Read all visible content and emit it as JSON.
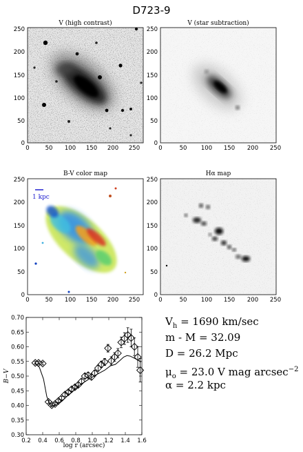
{
  "figure_title": "D723-9",
  "panels": [
    {
      "title": "V (high contrast)",
      "x_ticks": [
        "0",
        "50",
        "100",
        "150",
        "200",
        "250"
      ],
      "y_ticks": [
        "0",
        "50",
        "100",
        "150",
        "200",
        "250"
      ]
    },
    {
      "title": "V (star subtraction)",
      "x_ticks": [
        "0",
        "50",
        "100",
        "150",
        "200",
        "250"
      ],
      "y_ticks": [
        "0",
        "50",
        "100",
        "150",
        "200",
        "250"
      ]
    },
    {
      "title": "B-V color map",
      "scale_label": "1 kpc",
      "x_ticks": [
        "0",
        "50",
        "100",
        "150",
        "200",
        "250"
      ],
      "y_ticks": [
        "0",
        "50",
        "100",
        "150",
        "200",
        "250"
      ]
    },
    {
      "title": "Hα map",
      "x_ticks": [
        "0",
        "50",
        "100",
        "150",
        "200",
        "250"
      ],
      "y_ticks": [
        "0",
        "50",
        "100",
        "150",
        "200",
        "250"
      ]
    }
  ],
  "parameters": {
    "vh_prefix": "V",
    "vh_sub": "h",
    "vh_value": " = 1690 km/sec",
    "distance_modulus": "m - M = 32.09",
    "distance": "D = 26.2 Mpc",
    "mu_prefix": "μ",
    "mu_sub": "o",
    "mu_value": " = 23.0 V mag arcsec",
    "mu_exp": "−2",
    "alpha": "α = 2.2 kpc"
  },
  "chart_data": {
    "type": "scatter",
    "xlabel": "log r (arcsec)",
    "ylabel": "B−V",
    "xlim": [
      0.2,
      1.6
    ],
    "ylim": [
      0.3,
      0.7
    ],
    "x_ticks": [
      "0.2",
      "0.4",
      "0.6",
      "0.8",
      "1.0",
      "1.2",
      "1.4",
      "1.6"
    ],
    "y_ticks": [
      "0.30",
      "0.35",
      "0.40",
      "0.45",
      "0.50",
      "0.55",
      "0.60",
      "0.65",
      "0.70"
    ],
    "points": [
      {
        "x": 0.31,
        "y": 0.545,
        "err": 0.005
      },
      {
        "x": 0.35,
        "y": 0.545,
        "err": 0.005
      },
      {
        "x": 0.4,
        "y": 0.543,
        "err": 0.005
      },
      {
        "x": 0.47,
        "y": 0.412,
        "err": 0.005
      },
      {
        "x": 0.51,
        "y": 0.401,
        "err": 0.005
      },
      {
        "x": 0.55,
        "y": 0.405,
        "err": 0.005
      },
      {
        "x": 0.59,
        "y": 0.415,
        "err": 0.005
      },
      {
        "x": 0.63,
        "y": 0.425,
        "err": 0.006
      },
      {
        "x": 0.67,
        "y": 0.437,
        "err": 0.006
      },
      {
        "x": 0.71,
        "y": 0.445,
        "err": 0.006
      },
      {
        "x": 0.75,
        "y": 0.455,
        "err": 0.007
      },
      {
        "x": 0.79,
        "y": 0.462,
        "err": 0.007
      },
      {
        "x": 0.83,
        "y": 0.47,
        "err": 0.007
      },
      {
        "x": 0.87,
        "y": 0.482,
        "err": 0.008
      },
      {
        "x": 0.91,
        "y": 0.5,
        "err": 0.008
      },
      {
        "x": 0.95,
        "y": 0.503,
        "err": 0.009
      },
      {
        "x": 0.99,
        "y": 0.497,
        "err": 0.009
      },
      {
        "x": 1.03,
        "y": 0.51,
        "err": 0.01
      },
      {
        "x": 1.07,
        "y": 0.527,
        "err": 0.01
      },
      {
        "x": 1.11,
        "y": 0.54,
        "err": 0.011
      },
      {
        "x": 1.15,
        "y": 0.548,
        "err": 0.012
      },
      {
        "x": 1.19,
        "y": 0.595,
        "err": 0.013
      },
      {
        "x": 1.23,
        "y": 0.552,
        "err": 0.014
      },
      {
        "x": 1.27,
        "y": 0.565,
        "err": 0.015
      },
      {
        "x": 1.31,
        "y": 0.578,
        "err": 0.016
      },
      {
        "x": 1.35,
        "y": 0.615,
        "err": 0.018
      },
      {
        "x": 1.39,
        "y": 0.628,
        "err": 0.02
      },
      {
        "x": 1.43,
        "y": 0.64,
        "err": 0.025
      },
      {
        "x": 1.47,
        "y": 0.63,
        "err": 0.03
      },
      {
        "x": 1.51,
        "y": 0.6,
        "err": 0.03
      },
      {
        "x": 1.55,
        "y": 0.565,
        "err": 0.035
      },
      {
        "x": 1.58,
        "y": 0.52,
        "err": 0.04
      }
    ],
    "model_line": [
      {
        "x": 0.3,
        "y": 0.545
      },
      {
        "x": 0.36,
        "y": 0.53
      },
      {
        "x": 0.41,
        "y": 0.49
      },
      {
        "x": 0.45,
        "y": 0.43
      },
      {
        "x": 0.5,
        "y": 0.398
      },
      {
        "x": 0.56,
        "y": 0.402
      },
      {
        "x": 0.65,
        "y": 0.42
      },
      {
        "x": 0.75,
        "y": 0.445
      },
      {
        "x": 0.85,
        "y": 0.47
      },
      {
        "x": 0.95,
        "y": 0.488
      },
      {
        "x": 1.05,
        "y": 0.505
      },
      {
        "x": 1.15,
        "y": 0.52
      },
      {
        "x": 1.22,
        "y": 0.535
      },
      {
        "x": 1.28,
        "y": 0.54
      },
      {
        "x": 1.33,
        "y": 0.552
      },
      {
        "x": 1.38,
        "y": 0.565
      },
      {
        "x": 1.42,
        "y": 0.57
      },
      {
        "x": 1.46,
        "y": 0.568
      },
      {
        "x": 1.5,
        "y": 0.562
      },
      {
        "x": 1.55,
        "y": 0.555
      },
      {
        "x": 1.59,
        "y": 0.548
      }
    ]
  }
}
